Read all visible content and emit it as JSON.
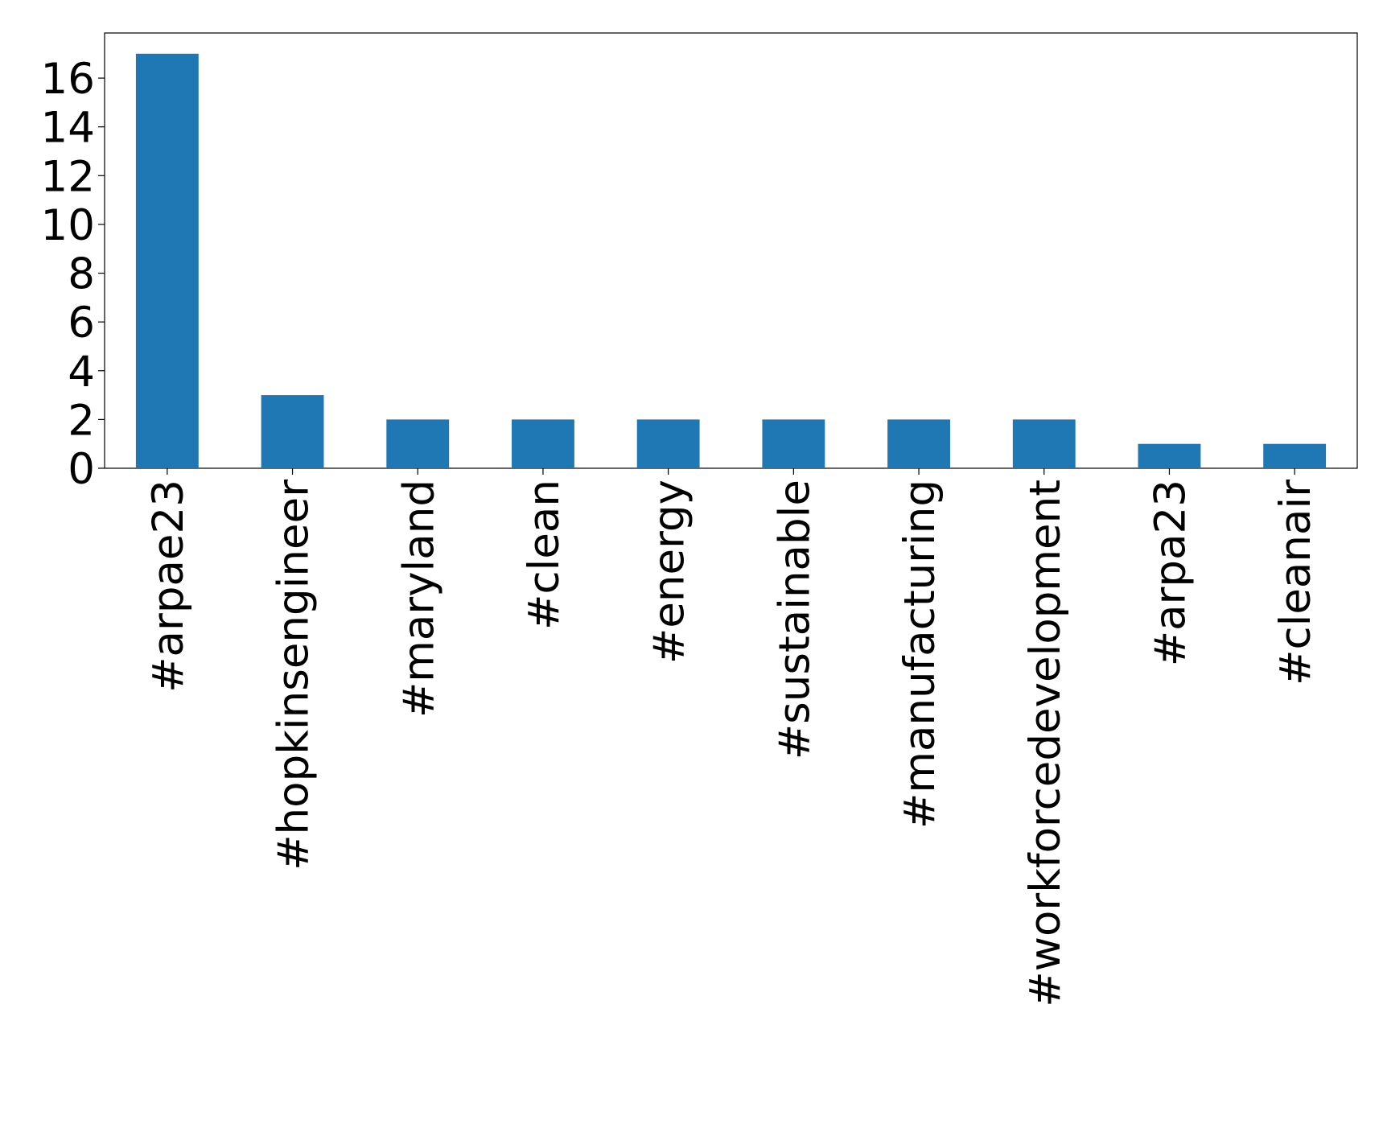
{
  "chart_data": {
    "type": "bar",
    "categories": [
      "#arpae23",
      "#hopkinsengineer",
      "#maryland",
      "#clean",
      "#energy",
      "#sustainable",
      "#manufacturing",
      "#workforcedevelopment",
      "#arpa23",
      "#cleanair"
    ],
    "values": [
      17,
      3,
      2,
      2,
      2,
      2,
      2,
      2,
      1,
      1
    ],
    "color": "#1f77b4",
    "ylim": [
      0,
      17.85
    ],
    "yticks": [
      0,
      2,
      4,
      6,
      8,
      10,
      12,
      14,
      16
    ],
    "grid": false
  }
}
